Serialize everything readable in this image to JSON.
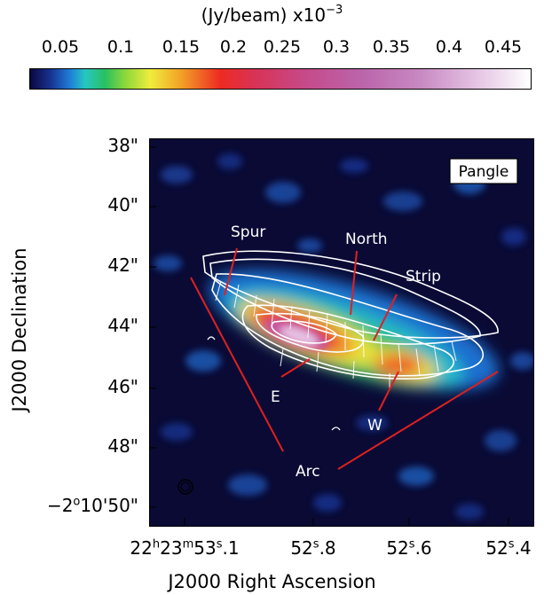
{
  "colorbar": {
    "unit_label": "(Jy/beam)  x10",
    "unit_exponent": "−3",
    "ticks": [
      "0.05",
      "0.1",
      "0.15",
      "0.2",
      "0.25",
      "0.3",
      "0.35",
      "0.4",
      "0.45"
    ]
  },
  "axes": {
    "y_label": "J2000 Declination",
    "x_label": "J2000 Right Ascension",
    "y_ticks": [
      "38\"",
      "40\"",
      "42\"",
      "44\"",
      "46\"",
      "48\""
    ],
    "y_tick_last": {
      "prefix": "−2",
      "deg": "o",
      "rest": "10'50\""
    },
    "x_ticks": [
      {
        "h": "22",
        "m": "23",
        "s": "53",
        "frac": ".1"
      },
      {
        "s": "52",
        "frac": ".8"
      },
      {
        "s": "52",
        "frac": ".6"
      },
      {
        "s": "52",
        "frac": ".4"
      }
    ]
  },
  "image": {
    "panel_label": "Pangle",
    "annotations": [
      "Spur",
      "North",
      "Strip",
      "E",
      "W",
      "Arc"
    ],
    "colors": {
      "background": "#0a0a35",
      "annotation_line": "#e02020",
      "contour": "#ffffff"
    }
  }
}
